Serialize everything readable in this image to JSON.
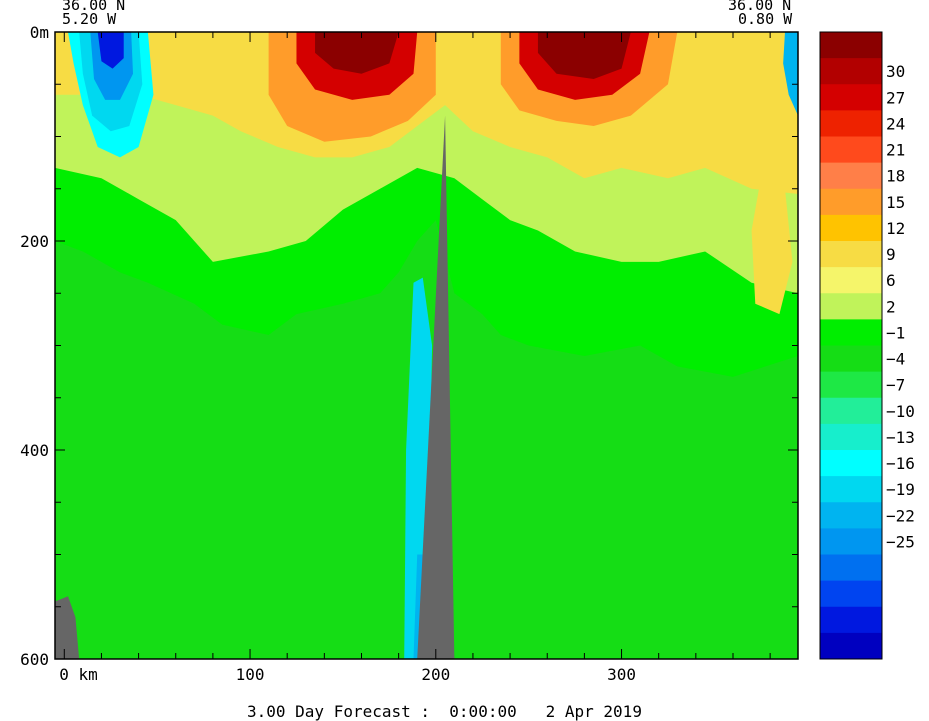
{
  "chart_data": {
    "type": "heatmap",
    "title": "",
    "footer": "3.00 Day Forecast :  0:00:00   2 Apr 2019",
    "section_start": {
      "lat": "36.00 N",
      "lon": "5.20 W"
    },
    "section_end": {
      "lat": "36.00 N",
      "lon": "0.80 W"
    },
    "xlabel": "km",
    "ylabel": "m",
    "x_range": [
      -5,
      395
    ],
    "y_range": [
      0,
      600
    ],
    "y_inverted": true,
    "x_ticks": [
      {
        "value": 0,
        "label": "0 km"
      },
      {
        "value": 100,
        "label": "100"
      },
      {
        "value": 200,
        "label": "200"
      },
      {
        "value": 300,
        "label": "300"
      }
    ],
    "y_ticks": [
      {
        "value": 0,
        "label": "0m"
      },
      {
        "value": 200,
        "label": "200"
      },
      {
        "value": 400,
        "label": "400"
      },
      {
        "value": 600,
        "label": "600"
      }
    ],
    "colorbar": {
      "labels": [
        "30",
        "27",
        "24",
        "21",
        "18",
        "15",
        "12",
        "9",
        "6",
        "2",
        "−1",
        "−4",
        "−7",
        "−10",
        "−13",
        "−16",
        "−19",
        "−22",
        "−25"
      ],
      "colors": [
        "#8b0000",
        "#b20000",
        "#d40000",
        "#ee2200",
        "#ff4a1c",
        "#ff7f48",
        "#ff9c2a",
        "#ffc300",
        "#f7dc44",
        "#f5f56a",
        "#c0f35a",
        "#00ee00",
        "#15dd15",
        "#1ee845",
        "#22ee99",
        "#17eecc",
        "#00ffff",
        "#00d8f0",
        "#00b4f0",
        "#0096f0",
        "#0070f0",
        "#0044f0",
        "#0018e0",
        "#0000c0"
      ],
      "position": "right"
    },
    "bathymetry_color": "#666666",
    "regions": [
      {
        "name": "background",
        "value": 1,
        "pts": []
      },
      {
        "name": "upper-light-green",
        "value": 5,
        "pts": [
          [
            -5,
            0
          ],
          [
            395,
            0
          ],
          [
            395,
            310
          ],
          [
            360,
            330
          ],
          [
            330,
            320
          ],
          [
            310,
            300
          ],
          [
            280,
            310
          ],
          [
            250,
            300
          ],
          [
            235,
            290
          ],
          [
            225,
            270
          ],
          [
            210,
            250
          ],
          [
            200,
            180
          ],
          [
            190,
            200
          ],
          [
            180,
            230
          ],
          [
            170,
            250
          ],
          [
            150,
            260
          ],
          [
            125,
            270
          ],
          [
            110,
            290
          ],
          [
            85,
            280
          ],
          [
            70,
            260
          ],
          [
            45,
            240
          ],
          [
            30,
            230
          ],
          [
            10,
            210
          ],
          [
            -5,
            200
          ]
        ]
      },
      {
        "name": "pale-yellow",
        "value": 7,
        "pts": [
          [
            -5,
            0
          ],
          [
            395,
            0
          ],
          [
            395,
            250
          ],
          [
            370,
            240
          ],
          [
            345,
            210
          ],
          [
            320,
            220
          ],
          [
            300,
            220
          ],
          [
            275,
            210
          ],
          [
            255,
            190
          ],
          [
            240,
            180
          ],
          [
            225,
            160
          ],
          [
            210,
            140
          ],
          [
            190,
            130
          ],
          [
            170,
            150
          ],
          [
            150,
            170
          ],
          [
            130,
            200
          ],
          [
            110,
            210
          ],
          [
            80,
            220
          ],
          [
            60,
            180
          ],
          [
            40,
            160
          ],
          [
            20,
            140
          ],
          [
            -5,
            130
          ]
        ]
      },
      {
        "name": "yellow",
        "value": 10,
        "pts": [
          [
            -5,
            0
          ],
          [
            395,
            0
          ],
          [
            395,
            155
          ],
          [
            370,
            150
          ],
          [
            345,
            130
          ],
          [
            325,
            140
          ],
          [
            300,
            130
          ],
          [
            280,
            140
          ],
          [
            260,
            120
          ],
          [
            240,
            110
          ],
          [
            220,
            95
          ],
          [
            205,
            70
          ],
          [
            190,
            90
          ],
          [
            175,
            110
          ],
          [
            155,
            120
          ],
          [
            135,
            120
          ],
          [
            115,
            110
          ],
          [
            95,
            95
          ],
          [
            80,
            80
          ],
          [
            60,
            70
          ],
          [
            40,
            60
          ],
          [
            20,
            60
          ],
          [
            -5,
            60
          ]
        ]
      },
      {
        "name": "orange",
        "value": 16,
        "pts": [
          [
            110,
            0
          ],
          [
            200,
            0
          ],
          [
            200,
            60
          ],
          [
            185,
            85
          ],
          [
            165,
            100
          ],
          [
            140,
            105
          ],
          [
            120,
            90
          ],
          [
            110,
            60
          ]
        ]
      },
      {
        "name": "orange-right",
        "value": 16,
        "pts": [
          [
            235,
            0
          ],
          [
            330,
            0
          ],
          [
            325,
            50
          ],
          [
            305,
            80
          ],
          [
            285,
            90
          ],
          [
            265,
            85
          ],
          [
            245,
            75
          ],
          [
            235,
            50
          ]
        ]
      },
      {
        "name": "red",
        "value": 25,
        "pts": [
          [
            125,
            0
          ],
          [
            190,
            0
          ],
          [
            188,
            40
          ],
          [
            175,
            60
          ],
          [
            155,
            65
          ],
          [
            135,
            55
          ],
          [
            125,
            30
          ]
        ]
      },
      {
        "name": "red-right",
        "value": 25,
        "pts": [
          [
            245,
            0
          ],
          [
            315,
            0
          ],
          [
            310,
            40
          ],
          [
            295,
            60
          ],
          [
            275,
            65
          ],
          [
            255,
            55
          ],
          [
            245,
            30
          ]
        ]
      },
      {
        "name": "dark-red",
        "value": 31,
        "pts": [
          [
            135,
            0
          ],
          [
            180,
            0
          ],
          [
            175,
            30
          ],
          [
            160,
            40
          ],
          [
            145,
            35
          ],
          [
            135,
            20
          ]
        ]
      },
      {
        "name": "dark-red-right",
        "value": 31,
        "pts": [
          [
            255,
            0
          ],
          [
            305,
            0
          ],
          [
            300,
            35
          ],
          [
            285,
            45
          ],
          [
            265,
            40
          ],
          [
            255,
            20
          ]
        ]
      },
      {
        "name": "cold-core-teal",
        "value": -8,
        "pts": [
          [
            2,
            0
          ],
          [
            45,
            0
          ],
          [
            48,
            60
          ],
          [
            40,
            110
          ],
          [
            30,
            120
          ],
          [
            18,
            110
          ],
          [
            10,
            70
          ],
          [
            5,
            30
          ]
        ]
      },
      {
        "name": "cold-core-cyan",
        "value": -12,
        "pts": [
          [
            8,
            0
          ],
          [
            40,
            0
          ],
          [
            42,
            50
          ],
          [
            35,
            90
          ],
          [
            25,
            95
          ],
          [
            15,
            80
          ],
          [
            10,
            40
          ]
        ]
      },
      {
        "name": "cold-core-blue",
        "value": -19,
        "pts": [
          [
            14,
            0
          ],
          [
            36,
            0
          ],
          [
            37,
            40
          ],
          [
            30,
            65
          ],
          [
            22,
            65
          ],
          [
            16,
            45
          ]
        ]
      },
      {
        "name": "cold-core-deep-blue",
        "value": -24,
        "pts": [
          [
            18,
            0
          ],
          [
            32,
            0
          ],
          [
            32,
            25
          ],
          [
            26,
            35
          ],
          [
            20,
            28
          ]
        ]
      },
      {
        "name": "right-edge-blue",
        "value": -16,
        "pts": [
          [
            388,
            0
          ],
          [
            395,
            0
          ],
          [
            395,
            80
          ],
          [
            390,
            60
          ],
          [
            387,
            30
          ]
        ]
      },
      {
        "name": "deep-cyan-column",
        "value": -11,
        "pts": [
          [
            188,
            240
          ],
          [
            193,
            235
          ],
          [
            198,
            300
          ],
          [
            195,
            600
          ],
          [
            183,
            600
          ],
          [
            184,
            400
          ]
        ]
      },
      {
        "name": "deep-cyan-strip",
        "value": -14,
        "pts": [
          [
            190,
            500
          ],
          [
            193,
            500
          ],
          [
            193,
            600
          ],
          [
            188,
            600
          ]
        ]
      },
      {
        "name": "right-warm-lens",
        "value": 10,
        "pts": [
          [
            375,
            140
          ],
          [
            388,
            150
          ],
          [
            392,
            220
          ],
          [
            385,
            270
          ],
          [
            372,
            260
          ],
          [
            370,
            190
          ]
        ]
      }
    ],
    "bathymetry": [
      {
        "name": "ridge",
        "pts": [
          [
            190,
            600
          ],
          [
            205,
            80
          ],
          [
            210,
            600
          ]
        ]
      },
      {
        "name": "left-slope",
        "pts": [
          [
            -5,
            600
          ],
          [
            -5,
            545
          ],
          [
            2,
            540
          ],
          [
            6,
            560
          ],
          [
            8,
            600
          ]
        ]
      }
    ]
  }
}
